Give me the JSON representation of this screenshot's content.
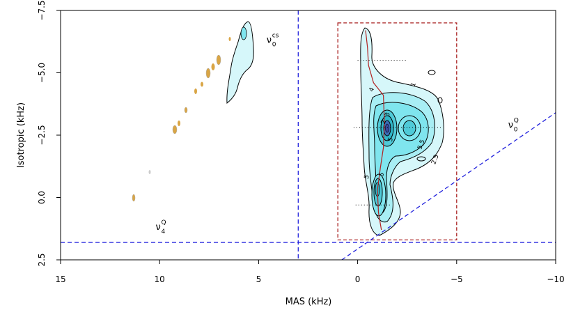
{
  "chart_data": {
    "type": "contour",
    "xlabel": "MAS (kHz)",
    "ylabel": "Isotropic (kHz)",
    "xlim": [
      15,
      -10
    ],
    "ylim": [
      2.5,
      -7.5
    ],
    "xticks": [
      15,
      10,
      5,
      0,
      -5,
      -10
    ],
    "xtick_labels": [
      "15",
      "10",
      "5",
      "0",
      "−5",
      "−10"
    ],
    "yticks": [
      2.5,
      0.0,
      -2.5,
      -5.0,
      -7.5
    ],
    "ytick_labels": [
      "2.5",
      "0.0",
      "−2.5",
      "−5.0",
      "−7.5"
    ],
    "reference_lines": [
      {
        "label": "cs",
        "type": "vertical",
        "x": 3.0,
        "color": "#2222dd"
      },
      {
        "label": "4Q",
        "type": "horizontal",
        "y": 1.8,
        "color": "#2222dd"
      },
      {
        "label": "0Q",
        "type": "line",
        "points": [
          [
            0.8,
            2.5
          ],
          [
            -10,
            -3.4
          ]
        ],
        "color": "#2222dd"
      }
    ],
    "annotations": [
      {
        "main": "ν",
        "sub": "0",
        "sup": "cs",
        "x": 4.6,
        "y": -6.2
      },
      {
        "main": "ν",
        "sub": "4",
        "sup": "Q",
        "x": 10.2,
        "y": 1.3
      },
      {
        "main": "ν",
        "sub": "0",
        "sup": "Q",
        "x": -7.6,
        "y": -2.8
      }
    ],
    "selection_box": {
      "x": [
        1.0,
        -5.0
      ],
      "y": [
        -7.0,
        1.7
      ],
      "color": "#aa2222"
    },
    "ridge_line": [
      [
        -0.4,
        -6.7
      ],
      [
        -0.5,
        -6.0
      ],
      [
        -0.55,
        -5.3
      ],
      [
        -0.8,
        -4.6
      ],
      [
        -1.3,
        -4.1
      ],
      [
        -1.35,
        -3.0
      ],
      [
        -1.3,
        -2.0
      ],
      [
        -1.15,
        -1.2
      ],
      [
        -1.0,
        -0.3
      ],
      [
        -1.05,
        0.6
      ],
      [
        -1.2,
        1.3
      ]
    ],
    "slice_lines": [
      {
        "y": -5.5,
        "x": [
          0.0,
          -2.5
        ]
      },
      {
        "y": -2.8,
        "x": [
          0.2,
          -4.2
        ]
      },
      {
        "y": 0.3,
        "x": [
          0.1,
          -1.7
        ]
      }
    ],
    "contour_levels": [
      {
        "label": "1",
        "x": -2.9,
        "y": -4.5
      },
      {
        "label": "2",
        "x": -1.4,
        "y": -3.0
      },
      {
        "label": "3",
        "x": -1.6,
        "y": -3.3
      },
      {
        "label": "4",
        "x": -0.8,
        "y": -4.3
      },
      {
        "label": "5.5",
        "x": -3.3,
        "y": -2.1
      },
      {
        "label": "5",
        "x": -1.75,
        "y": -2.3
      },
      {
        "label": "2.5",
        "x": -4.0,
        "y": -1.5
      },
      {
        "label": "5",
        "x": -1.3,
        "y": -0.9
      },
      {
        "label": "5",
        "x": -0.55,
        "y": -0.8
      }
    ],
    "colors": {
      "frame": "#000000",
      "fill_light": "#d6f7fa",
      "fill_mid": "#7fe5ee",
      "fill_dark": "#2fb6c8",
      "fill_core": "#3a4aa0",
      "side_peaks": "#d9a545"
    }
  }
}
